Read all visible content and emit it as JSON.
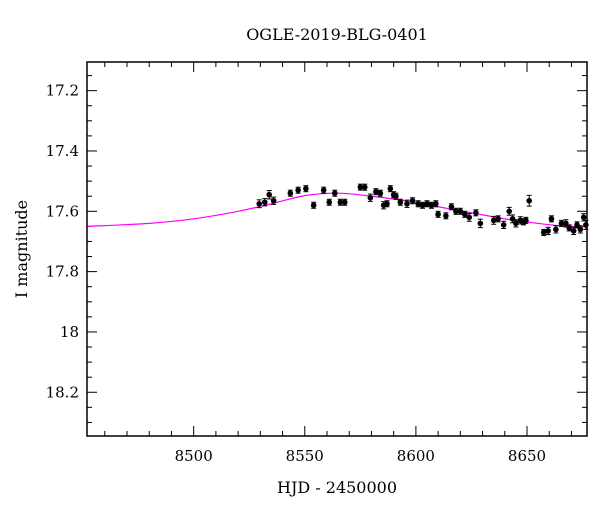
{
  "chart_data": {
    "type": "scatter",
    "title": "OGLE-2019-BLG-0401",
    "xlabel": "HJD - 2450000",
    "ylabel": "I magnitude",
    "xlim": [
      8452,
      8677
    ],
    "ylim": [
      18.345,
      17.105
    ],
    "y_inverted": true,
    "x_ticks": [
      {
        "value": 8500,
        "label": "8500"
      },
      {
        "value": 8550,
        "label": "8550"
      },
      {
        "value": 8600,
        "label": "8600"
      },
      {
        "value": 8650,
        "label": "8650"
      }
    ],
    "y_ticks": [
      {
        "value": 17.2,
        "label": "17.2"
      },
      {
        "value": 17.4,
        "label": "17.4"
      },
      {
        "value": 17.6,
        "label": "17.6"
      },
      {
        "value": 17.8,
        "label": "17.8"
      },
      {
        "value": 18.0,
        "label": "18"
      },
      {
        "value": 18.2,
        "label": "18.2"
      }
    ],
    "x_minor_step": 10,
    "y_minor_step": 0.05,
    "grid": false,
    "series": [
      {
        "kind": "points",
        "color": "#000000",
        "points": [
          [
            8529.5,
            17.575,
            0.013
          ],
          [
            8532.0,
            17.57,
            0.012
          ],
          [
            8534.0,
            17.545,
            0.014
          ],
          [
            8536.0,
            17.565,
            0.012
          ],
          [
            8543.5,
            17.54,
            0.01
          ],
          [
            8547.0,
            17.53,
            0.01
          ],
          [
            8550.5,
            17.525,
            0.01
          ],
          [
            8554.0,
            17.58,
            0.01
          ],
          [
            8558.5,
            17.53,
            0.01
          ],
          [
            8561.0,
            17.57,
            0.01
          ],
          [
            8563.5,
            17.54,
            0.01
          ],
          [
            8566.0,
            17.57,
            0.01
          ],
          [
            8568.0,
            17.57,
            0.01
          ],
          [
            8575.0,
            17.52,
            0.01
          ],
          [
            8577.0,
            17.52,
            0.01
          ],
          [
            8579.5,
            17.555,
            0.012
          ],
          [
            8582.0,
            17.535,
            0.01
          ],
          [
            8584.0,
            17.54,
            0.01
          ],
          [
            8585.5,
            17.58,
            0.012
          ],
          [
            8587.0,
            17.575,
            0.01
          ],
          [
            8588.5,
            17.525,
            0.01
          ],
          [
            8590.0,
            17.545,
            0.01
          ],
          [
            8591.0,
            17.55,
            0.01
          ],
          [
            8593.0,
            17.57,
            0.01
          ],
          [
            8596.0,
            17.575,
            0.012
          ],
          [
            8598.5,
            17.565,
            0.01
          ],
          [
            8601.0,
            17.575,
            0.01
          ],
          [
            8603.0,
            17.58,
            0.01
          ],
          [
            8605.0,
            17.575,
            0.01
          ],
          [
            8607.0,
            17.58,
            0.01
          ],
          [
            8609.0,
            17.575,
            0.01
          ],
          [
            8610.0,
            17.61,
            0.01
          ],
          [
            8613.5,
            17.615,
            0.01
          ],
          [
            8616.0,
            17.585,
            0.01
          ],
          [
            8618.0,
            17.6,
            0.01
          ],
          [
            8620.0,
            17.6,
            0.01
          ],
          [
            8622.0,
            17.61,
            0.01
          ],
          [
            8624.0,
            17.62,
            0.013
          ],
          [
            8627.0,
            17.605,
            0.01
          ],
          [
            8629.0,
            17.64,
            0.014
          ],
          [
            8635.0,
            17.63,
            0.013
          ],
          [
            8637.0,
            17.625,
            0.01
          ],
          [
            8639.5,
            17.645,
            0.012
          ],
          [
            8642.0,
            17.6,
            0.013
          ],
          [
            8643.5,
            17.625,
            0.013
          ],
          [
            8645.0,
            17.64,
            0.012
          ],
          [
            8647.0,
            17.63,
            0.012
          ],
          [
            8648.5,
            17.635,
            0.01
          ],
          [
            8649.5,
            17.63,
            0.01
          ],
          [
            8651.0,
            17.565,
            0.018
          ],
          [
            8657.5,
            17.67,
            0.01
          ],
          [
            8659.5,
            17.665,
            0.012
          ],
          [
            8661.0,
            17.625,
            0.01
          ],
          [
            8663.0,
            17.66,
            0.012
          ],
          [
            8665.5,
            17.64,
            0.01
          ],
          [
            8667.5,
            17.64,
            0.012
          ],
          [
            8669.0,
            17.655,
            0.01
          ],
          [
            8671.0,
            17.665,
            0.012
          ],
          [
            8672.5,
            17.645,
            0.01
          ],
          [
            8674.0,
            17.66,
            0.012
          ],
          [
            8675.5,
            17.62,
            0.012
          ],
          [
            8676.5,
            17.645,
            0.015
          ]
        ]
      },
      {
        "kind": "model",
        "color": "#ff00ff",
        "points": [
          [
            8452,
            17.65
          ],
          [
            8480,
            17.64
          ],
          [
            8500,
            17.625
          ],
          [
            8520,
            17.6
          ],
          [
            8535,
            17.575
          ],
          [
            8550,
            17.548
          ],
          [
            8565,
            17.54
          ],
          [
            8580,
            17.55
          ],
          [
            8595,
            17.565
          ],
          [
            8610,
            17.585
          ],
          [
            8625,
            17.605
          ],
          [
            8640,
            17.625
          ],
          [
            8655,
            17.64
          ],
          [
            8665,
            17.648
          ],
          [
            8677,
            17.652
          ]
        ]
      }
    ]
  }
}
